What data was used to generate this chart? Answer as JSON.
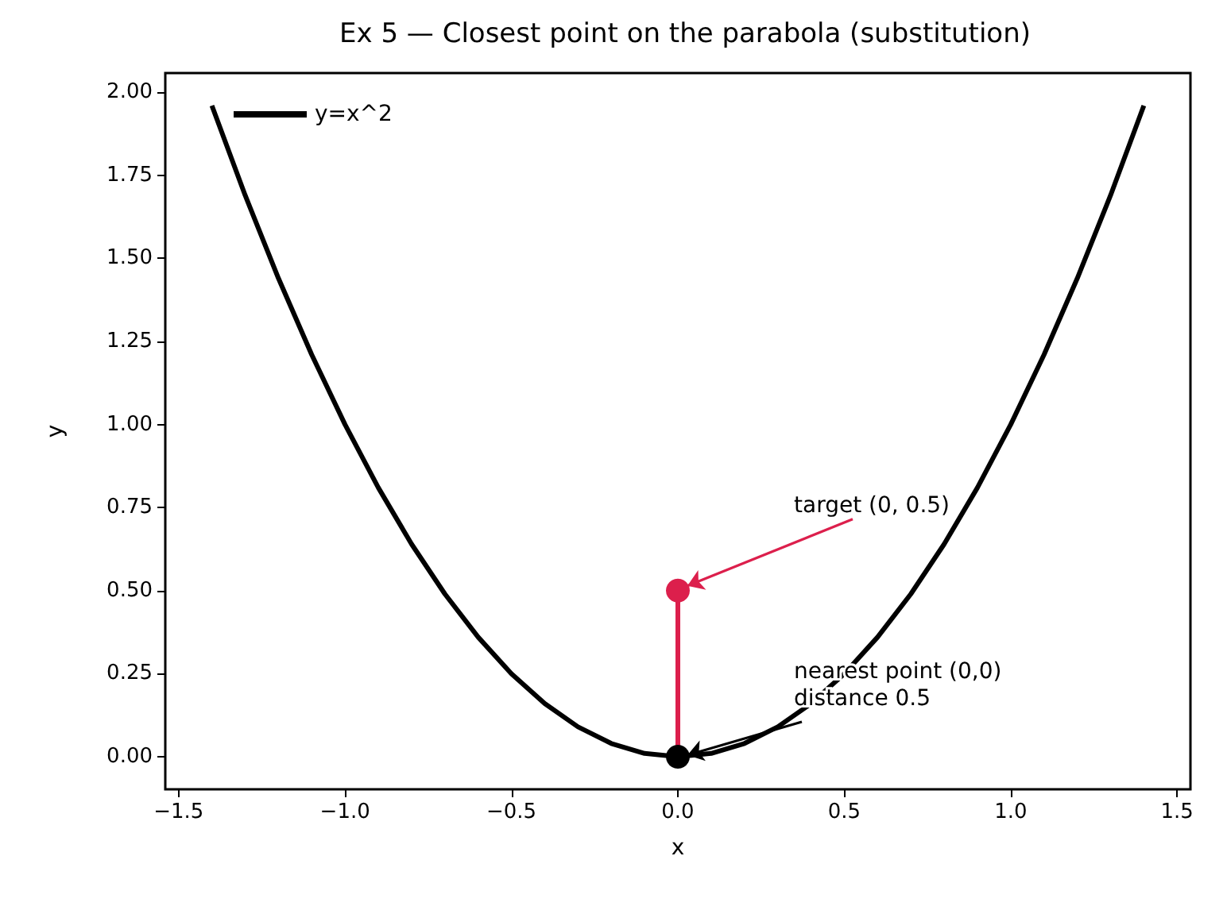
{
  "chart_data": {
    "type": "line",
    "title": "Ex 5 — Closest point on the parabola (substitution)",
    "xlabel": "x",
    "ylabel": "y",
    "xlim": [
      -1.54,
      1.54
    ],
    "ylim": [
      -0.098,
      2.058
    ],
    "xticks": [
      {
        "value": -1.5,
        "label": "−1.5"
      },
      {
        "value": -1,
        "label": "−1.0"
      },
      {
        "value": -0.5,
        "label": "−0.5"
      },
      {
        "value": 0,
        "label": "0.0"
      },
      {
        "value": 0.5,
        "label": "0.5"
      },
      {
        "value": 1,
        "label": "1.0"
      },
      {
        "value": 1.5,
        "label": "1.5"
      }
    ],
    "yticks": [
      {
        "value": 0,
        "label": "0.00"
      },
      {
        "value": 0.25,
        "label": "0.25"
      },
      {
        "value": 0.5,
        "label": "0.50"
      },
      {
        "value": 0.75,
        "label": "0.75"
      },
      {
        "value": 1,
        "label": "1.00"
      },
      {
        "value": 1.25,
        "label": "1.25"
      },
      {
        "value": 1.5,
        "label": "1.50"
      },
      {
        "value": 1.75,
        "label": "1.75"
      },
      {
        "value": 2,
        "label": "2.00"
      }
    ],
    "grid": false,
    "legend": "top left",
    "line_style": "solid",
    "series": [
      {
        "name": "y=x^2",
        "marker": "none",
        "color": "#000000",
        "x": [
          -1.4,
          -1.3,
          -1.2,
          -1.1,
          -1.0,
          -0.9,
          -0.8,
          -0.7,
          -0.6,
          -0.5,
          -0.4,
          -0.3,
          -0.2,
          -0.1,
          0,
          0.1,
          0.2,
          0.3,
          0.4,
          0.5,
          0.6,
          0.7,
          0.8,
          0.9,
          1.0,
          1.1,
          1.2,
          1.3,
          1.4
        ],
        "values": [
          1.96,
          1.69,
          1.44,
          1.21,
          1.0,
          0.81,
          0.64,
          0.49,
          0.36,
          0.25,
          0.16,
          0.09,
          0.04,
          0.01,
          0,
          0.01,
          0.04,
          0.09,
          0.16,
          0.25,
          0.36,
          0.49,
          0.64,
          0.81,
          1.0,
          1.21,
          1.44,
          1.69,
          1.96
        ]
      },
      {
        "type": "line",
        "marker": "none",
        "color": "#dc1f4c",
        "x": [
          0,
          0
        ],
        "values": [
          0,
          0.5
        ]
      },
      {
        "type": "scatter",
        "marker": "circle",
        "color": "#dc1f4c",
        "x": [
          0
        ],
        "values": [
          0.5
        ]
      },
      {
        "type": "scatter",
        "marker": "circle",
        "color": "#000000",
        "x": [
          0
        ],
        "values": [
          0
        ]
      }
    ],
    "annotations": [
      {
        "text": "target (0, 0.5)",
        "x": 0,
        "y": 0.5
      },
      {
        "text": "nearest point (0,0)\ndistance 0.5",
        "x": 0,
        "y": 0
      }
    ]
  }
}
